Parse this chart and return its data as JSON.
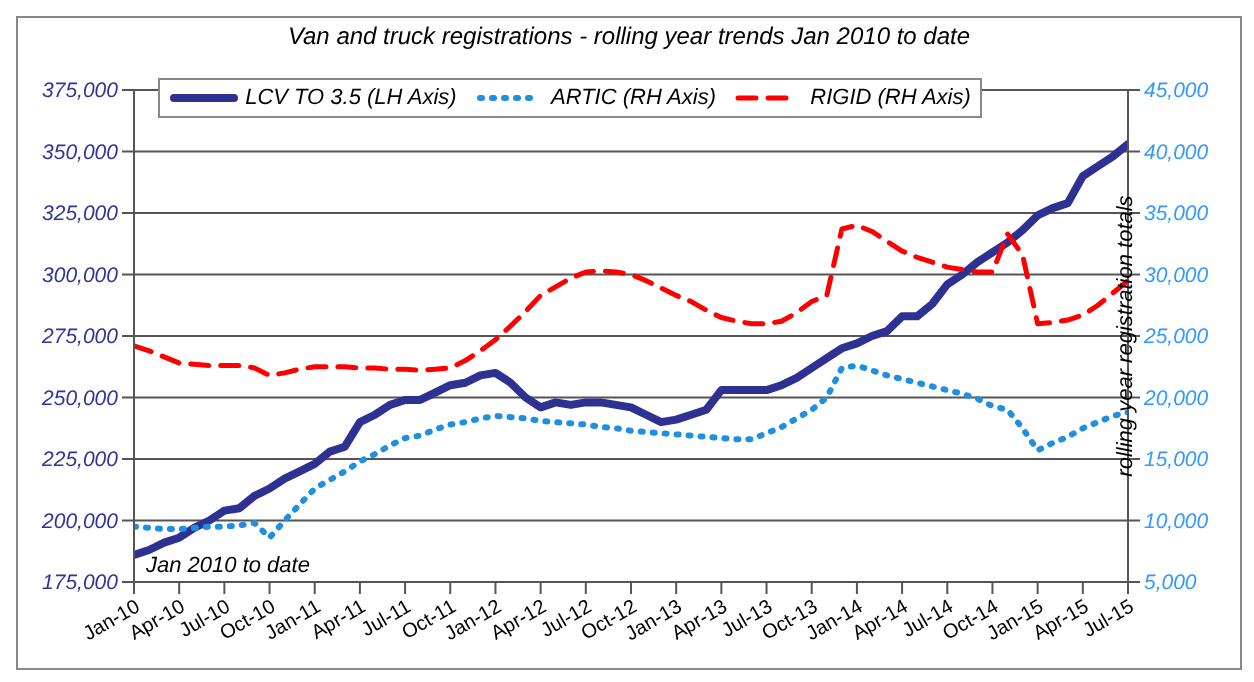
{
  "chart_data": {
    "type": "line",
    "title": "Van and truck registrations - rolling year trends Jan 2010 to date",
    "y2label": "rolling year registration totals",
    "annotations": [
      "Jan 2010 to date"
    ],
    "categories": [
      "Jan-10",
      null,
      null,
      "Apr-10",
      null,
      null,
      "Jul-10",
      null,
      null,
      "Oct-10",
      null,
      null,
      "Jan-11",
      null,
      null,
      "Apr-11",
      null,
      null,
      "Jul-11",
      null,
      null,
      "Oct-11",
      null,
      null,
      "Jan-12",
      null,
      null,
      "Apr-12",
      null,
      null,
      "Jul-12",
      null,
      null,
      "Oct-12",
      null,
      null,
      "Jan-13",
      null,
      null,
      "Apr-13",
      null,
      null,
      "Jul-13",
      null,
      null,
      "Oct-13",
      null,
      null,
      "Jan-14",
      null,
      null,
      "Apr-14",
      null,
      null,
      "Jul-14",
      null,
      null,
      "Oct-14",
      null,
      null,
      "Jan-15",
      null,
      null,
      "Apr-15",
      null,
      null,
      "Jul-15"
    ],
    "series": [
      {
        "name": "LCV TO 3.5 (LH Axis)",
        "color": "#2e3192",
        "line_style": "solid",
        "values": [
          186000,
          188000,
          191000,
          193000,
          197000,
          200000,
          204000,
          205000,
          210000,
          213000,
          217000,
          220000,
          223000,
          228000,
          230000,
          240000,
          243000,
          247000,
          249000,
          249000,
          252000,
          255000,
          256000,
          259000,
          260000,
          256000,
          250000,
          246000,
          248000,
          247000,
          248000,
          248000,
          247000,
          246000,
          243000,
          240000,
          241000,
          243000,
          245000,
          253000,
          253000,
          253000,
          253000,
          255000,
          258000,
          262000,
          266000,
          270000,
          272000,
          275000,
          277000,
          283000,
          283000,
          288000,
          296000,
          300000,
          305000,
          309000,
          313000,
          318000,
          324000,
          327000,
          329000,
          340000,
          344000,
          348000,
          353000
        ]
      },
      {
        "name": "ARTIC (RH Axis)",
        "color": "#1f8fe0",
        "line_style": "dotted",
        "axis": "y2",
        "values": [
          9500,
          9400,
          9300,
          9300,
          9400,
          9500,
          9500,
          9600,
          9800,
          8600,
          10000,
          11300,
          12600,
          13300,
          14000,
          14800,
          15400,
          16100,
          16700,
          16900,
          17400,
          17800,
          18000,
          18300,
          18500,
          18400,
          18300,
          18100,
          18000,
          17900,
          17800,
          17600,
          17500,
          17300,
          17200,
          17100,
          17000,
          16900,
          16800,
          16700,
          16600,
          16600,
          17100,
          17600,
          18300,
          19000,
          20000,
          22400,
          22600,
          22200,
          21800,
          21500,
          21200,
          20900,
          20600,
          20300,
          19900,
          19300,
          19000,
          17500,
          15700,
          16300,
          16800,
          17500,
          18000,
          18500,
          18800
        ]
      },
      {
        "name": "RIGID (RH Axis)",
        "color": "#ff0000",
        "line_style": "dashed",
        "axis": "y2",
        "values": [
          24200,
          23800,
          23300,
          22800,
          22700,
          22600,
          22600,
          22600,
          22400,
          21800,
          22000,
          22300,
          22500,
          22500,
          22500,
          22400,
          22400,
          22300,
          22300,
          22200,
          22300,
          22400,
          23000,
          23800,
          24700,
          25800,
          27000,
          28300,
          29000,
          29700,
          30200,
          30300,
          30200,
          30000,
          29500,
          28900,
          28300,
          27800,
          27100,
          26500,
          26200,
          26000,
          26000,
          26200,
          26900,
          27800,
          28300,
          33700,
          34000,
          33500,
          32700,
          31900,
          31400,
          31000,
          30600,
          30400,
          30200,
          30200,
          33300,
          31600,
          26000,
          26100,
          26300,
          26700,
          27500,
          28500,
          29500
        ]
      }
    ],
    "ylim": [
      175000,
      375000
    ],
    "yticks": [
      {
        "value": 175000,
        "label": "175,000"
      },
      {
        "value": 200000,
        "label": "200,000"
      },
      {
        "value": 225000,
        "label": "225,000"
      },
      {
        "value": 250000,
        "label": "250,000"
      },
      {
        "value": 275000,
        "label": "275,000"
      },
      {
        "value": 300000,
        "label": "300,000"
      },
      {
        "value": 325000,
        "label": "325,000"
      },
      {
        "value": 350000,
        "label": "350,000"
      },
      {
        "value": 375000,
        "label": "375,000"
      }
    ],
    "y2lim": [
      5000,
      45000
    ],
    "y2ticks": [
      {
        "value": 5000,
        "label": "5,000"
      },
      {
        "value": 10000,
        "label": "10,000"
      },
      {
        "value": 15000,
        "label": "15,000"
      },
      {
        "value": 20000,
        "label": "20,000"
      },
      {
        "value": 25000,
        "label": "25,000"
      },
      {
        "value": 30000,
        "label": "30,000"
      },
      {
        "value": 35000,
        "label": "35,000"
      },
      {
        "value": 40000,
        "label": "40,000"
      },
      {
        "value": 45000,
        "label": "45,000"
      }
    ],
    "grid": "y",
    "legend": "top",
    "marker": "none"
  }
}
